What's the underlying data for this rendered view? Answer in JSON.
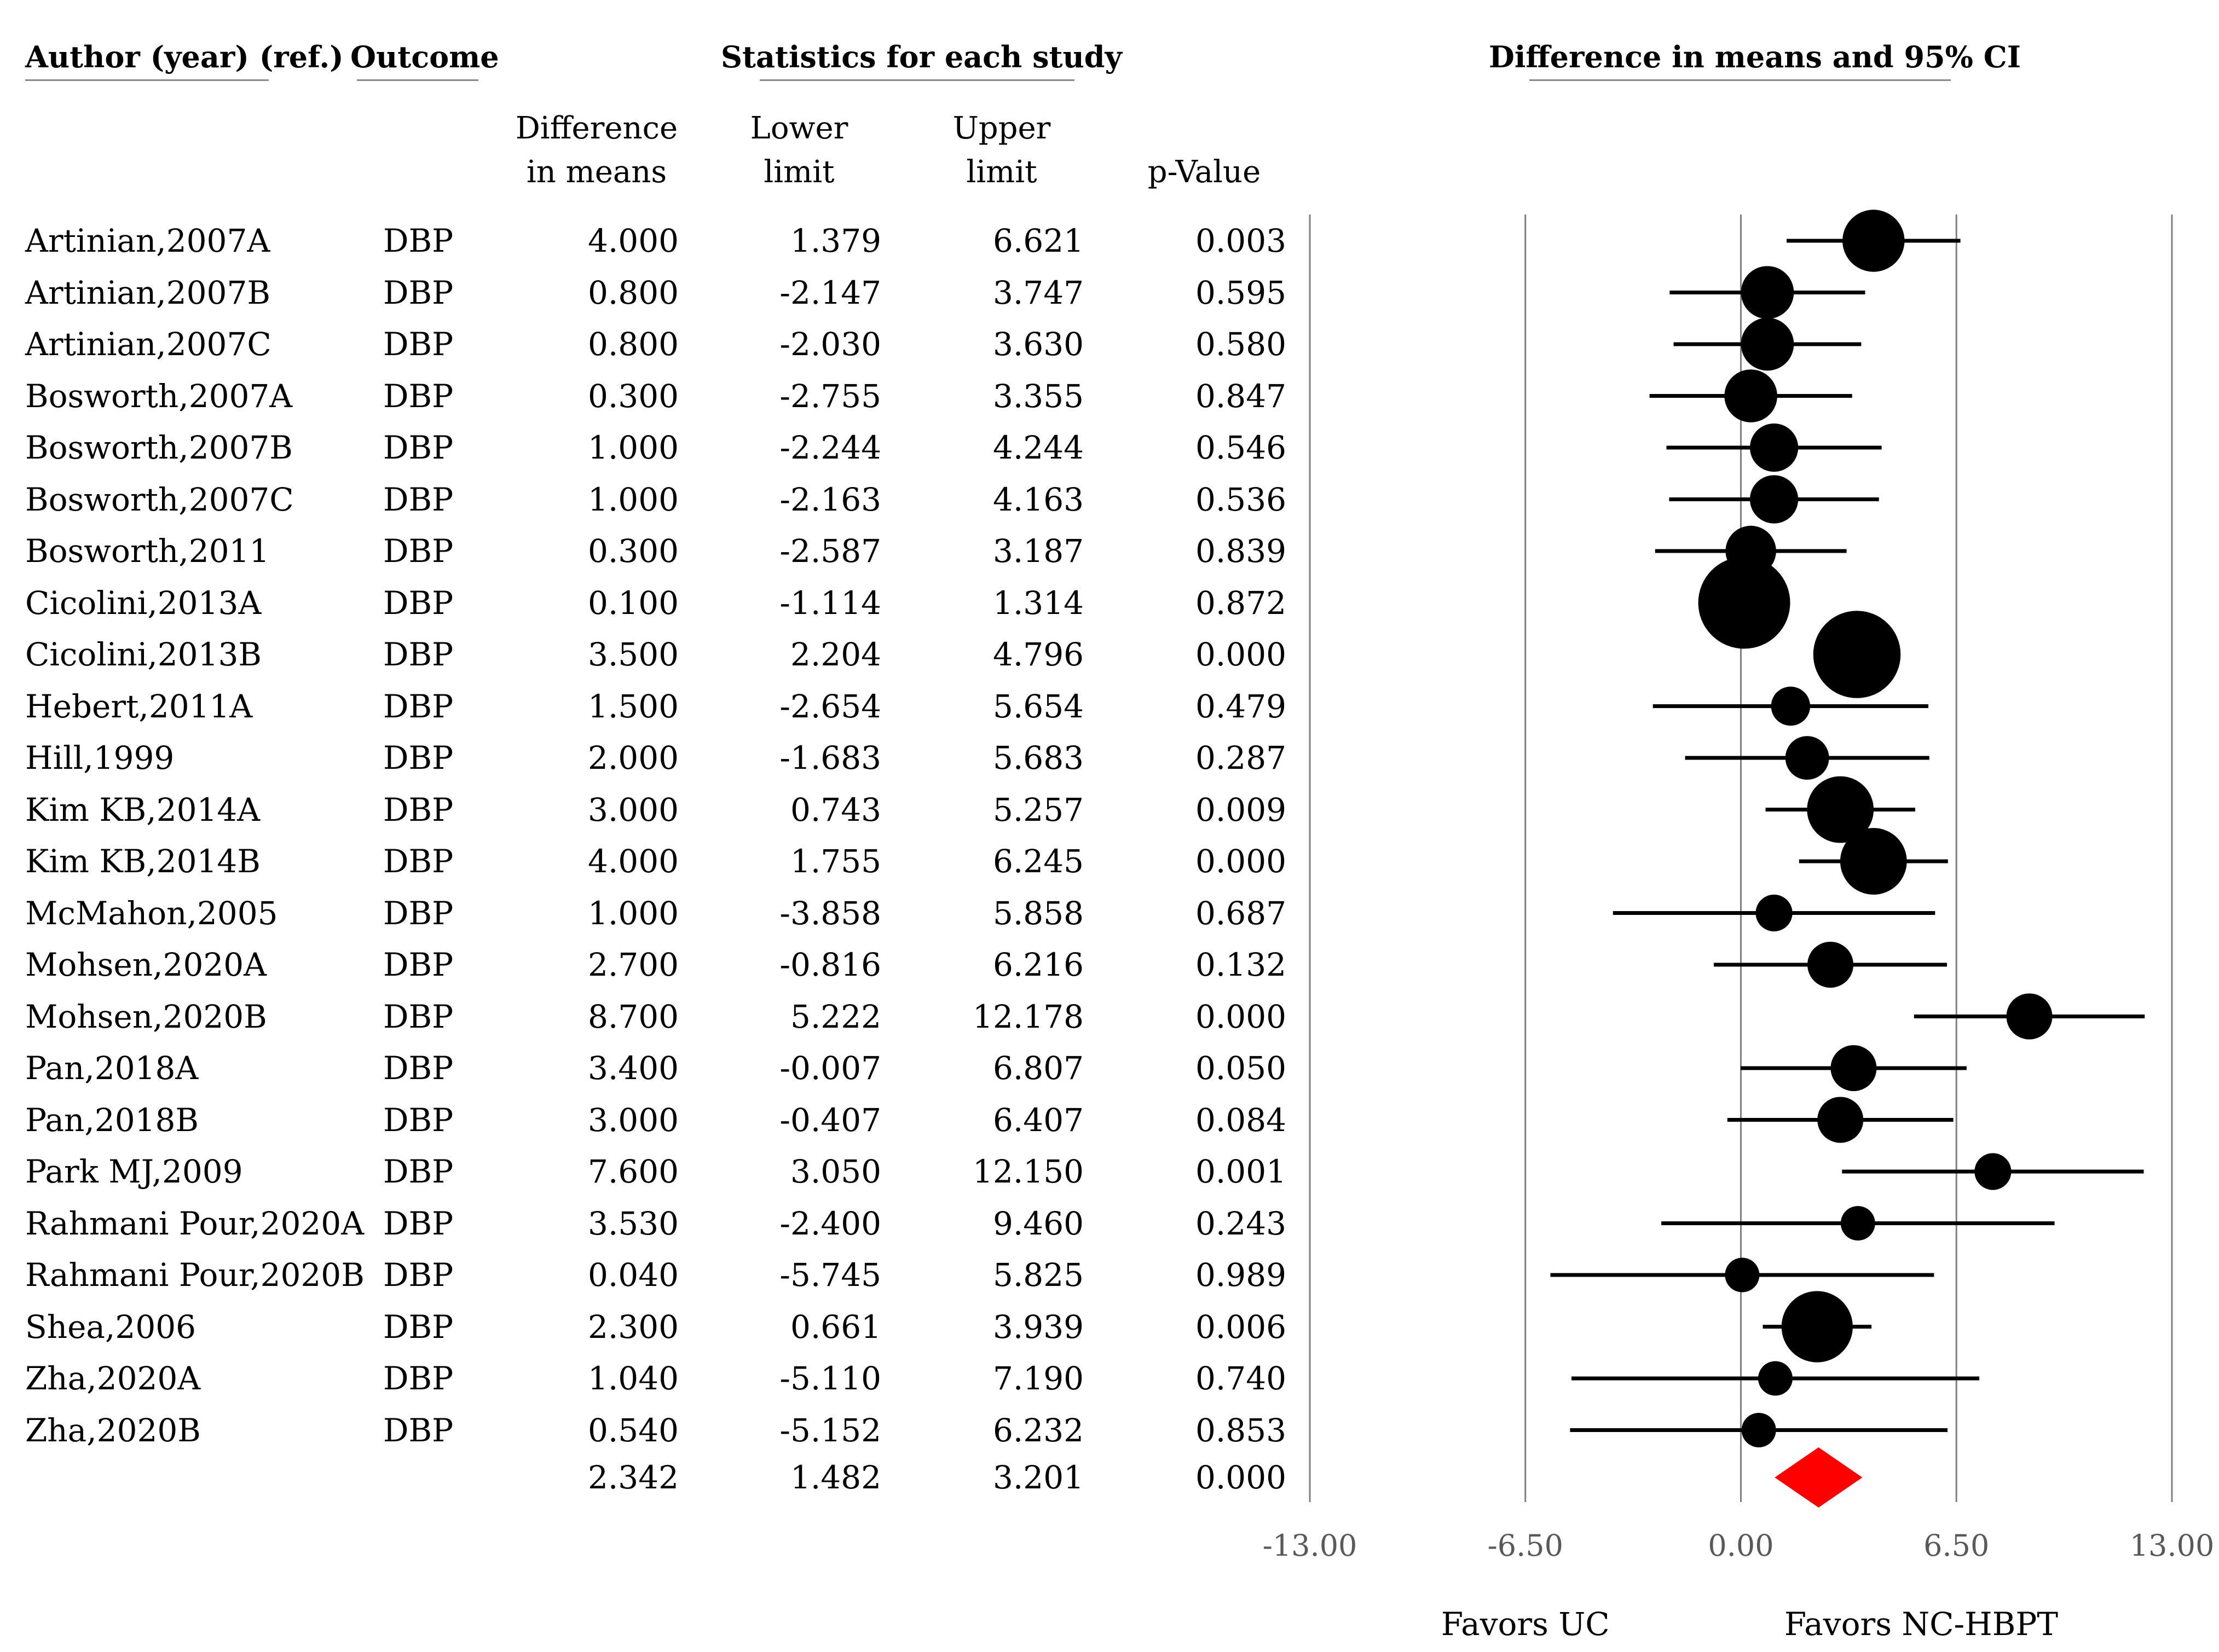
{
  "headers": {
    "author": "Author (year) (ref.)",
    "outcome": "Outcome",
    "stats": "Statistics for each study",
    "ci": "Difference in means and 95% CI",
    "diff_line1": "Difference",
    "diff_line2": "in means",
    "lower_line1": "Lower",
    "lower_line2": "limit",
    "upper_line1": "Upper",
    "upper_line2": "limit",
    "pvalue": "p-Value"
  },
  "summary": {
    "diff": "2.342",
    "lower": "1.482",
    "upper": "3.201",
    "p": "0.000"
  },
  "chart_data": {
    "type": "forest",
    "title": "Difference in means and 95% CI",
    "xlim": [
      -13.0,
      13.0
    ],
    "xticks": [
      "-13.00",
      "-6.50",
      "0.00",
      "6.50",
      "13.00"
    ],
    "xtick_values": [
      -13.0,
      -6.5,
      0.0,
      6.5,
      13.0
    ],
    "favors_left": "Favors UC",
    "favors_right": "Favors NC-HBPT",
    "studies": [
      {
        "name": "Artinian,2007A",
        "outcome": "DBP",
        "diff": 4.0,
        "lower": 1.379,
        "upper": 6.621,
        "p": "0.003",
        "weight": 1.35
      },
      {
        "name": "Artinian,2007B",
        "outcome": "DBP",
        "diff": 0.8,
        "lower": -2.147,
        "upper": 3.747,
        "p": "0.595",
        "weight": 1.15
      },
      {
        "name": "Artinian,2007C",
        "outcome": "DBP",
        "diff": 0.8,
        "lower": -2.03,
        "upper": 3.63,
        "p": "0.580",
        "weight": 1.15
      },
      {
        "name": "Bosworth,2007A",
        "outcome": "DBP",
        "diff": 0.3,
        "lower": -2.755,
        "upper": 3.355,
        "p": "0.847",
        "weight": 1.15
      },
      {
        "name": "Bosworth,2007B",
        "outcome": "DBP",
        "diff": 1.0,
        "lower": -2.244,
        "upper": 4.244,
        "p": "0.546",
        "weight": 1.05
      },
      {
        "name": "Bosworth,2007C",
        "outcome": "DBP",
        "diff": 1.0,
        "lower": -2.163,
        "upper": 4.163,
        "p": "0.536",
        "weight": 1.05
      },
      {
        "name": "Bosworth,2011",
        "outcome": "DBP",
        "diff": 0.3,
        "lower": -2.587,
        "upper": 3.187,
        "p": "0.839",
        "weight": 1.1
      },
      {
        "name": "Cicolini,2013A",
        "outcome": "DBP",
        "diff": 0.1,
        "lower": -1.114,
        "upper": 1.314,
        "p": "0.872",
        "weight": 2.0
      },
      {
        "name": "Cicolini,2013B",
        "outcome": "DBP",
        "diff": 3.5,
        "lower": 2.204,
        "upper": 4.796,
        "p": "0.000",
        "weight": 1.9
      },
      {
        "name": "Hebert,2011A",
        "outcome": "DBP",
        "diff": 1.5,
        "lower": -2.654,
        "upper": 5.654,
        "p": "0.479",
        "weight": 0.85
      },
      {
        "name": "Hill,1999",
        "outcome": "DBP",
        "diff": 2.0,
        "lower": -1.683,
        "upper": 5.683,
        "p": "0.287",
        "weight": 0.95
      },
      {
        "name": "Kim KB,2014A",
        "outcome": "DBP",
        "diff": 3.0,
        "lower": 0.743,
        "upper": 5.257,
        "p": "0.009",
        "weight": 1.45
      },
      {
        "name": "Kim KB,2014B",
        "outcome": "DBP",
        "diff": 4.0,
        "lower": 1.755,
        "upper": 6.245,
        "p": "0.000",
        "weight": 1.45
      },
      {
        "name": "McMahon,2005",
        "outcome": "DBP",
        "diff": 1.0,
        "lower": -3.858,
        "upper": 5.858,
        "p": "0.687",
        "weight": 0.8
      },
      {
        "name": "Mohsen,2020A",
        "outcome": "DBP",
        "diff": 2.7,
        "lower": -0.816,
        "upper": 6.216,
        "p": "0.132",
        "weight": 1.0
      },
      {
        "name": "Mohsen,2020B",
        "outcome": "DBP",
        "diff": 8.7,
        "lower": 5.222,
        "upper": 12.178,
        "p": "0.000",
        "weight": 1.0
      },
      {
        "name": "Pan,2018A",
        "outcome": "DBP",
        "diff": 3.4,
        "lower": -0.007,
        "upper": 6.807,
        "p": "0.050",
        "weight": 1.0
      },
      {
        "name": "Pan,2018B",
        "outcome": "DBP",
        "diff": 3.0,
        "lower": -0.407,
        "upper": 6.407,
        "p": "0.084",
        "weight": 1.0
      },
      {
        "name": "Park MJ,2009",
        "outcome": "DBP",
        "diff": 7.6,
        "lower": 3.05,
        "upper": 12.15,
        "p": "0.001",
        "weight": 0.8
      },
      {
        "name": "Rahmani Pour,2020A",
        "outcome": "DBP",
        "diff": 3.53,
        "lower": -2.4,
        "upper": 9.46,
        "p": "0.243",
        "weight": 0.75
      },
      {
        "name": "Rahmani Pour,2020B",
        "outcome": "DBP",
        "diff": 0.04,
        "lower": -5.745,
        "upper": 5.825,
        "p": "0.989",
        "weight": 0.75
      },
      {
        "name": "Shea,2006",
        "outcome": "DBP",
        "diff": 2.3,
        "lower": 0.661,
        "upper": 3.939,
        "p": "0.006",
        "weight": 1.55
      },
      {
        "name": "Zha,2020A",
        "outcome": "DBP",
        "diff": 1.04,
        "lower": -5.11,
        "upper": 7.19,
        "p": "0.740",
        "weight": 0.75
      },
      {
        "name": "Zha,2020B",
        "outcome": "DBP",
        "diff": 0.54,
        "lower": -5.152,
        "upper": 6.232,
        "p": "0.853",
        "weight": 0.75
      }
    ],
    "pooled": {
      "diff": 2.342,
      "lower": 1.482,
      "upper": 3.201
    },
    "colors": {
      "markers": "#000000",
      "pooled": "#ff0000",
      "gridlines": "#808080",
      "ticks": "#595959"
    }
  }
}
